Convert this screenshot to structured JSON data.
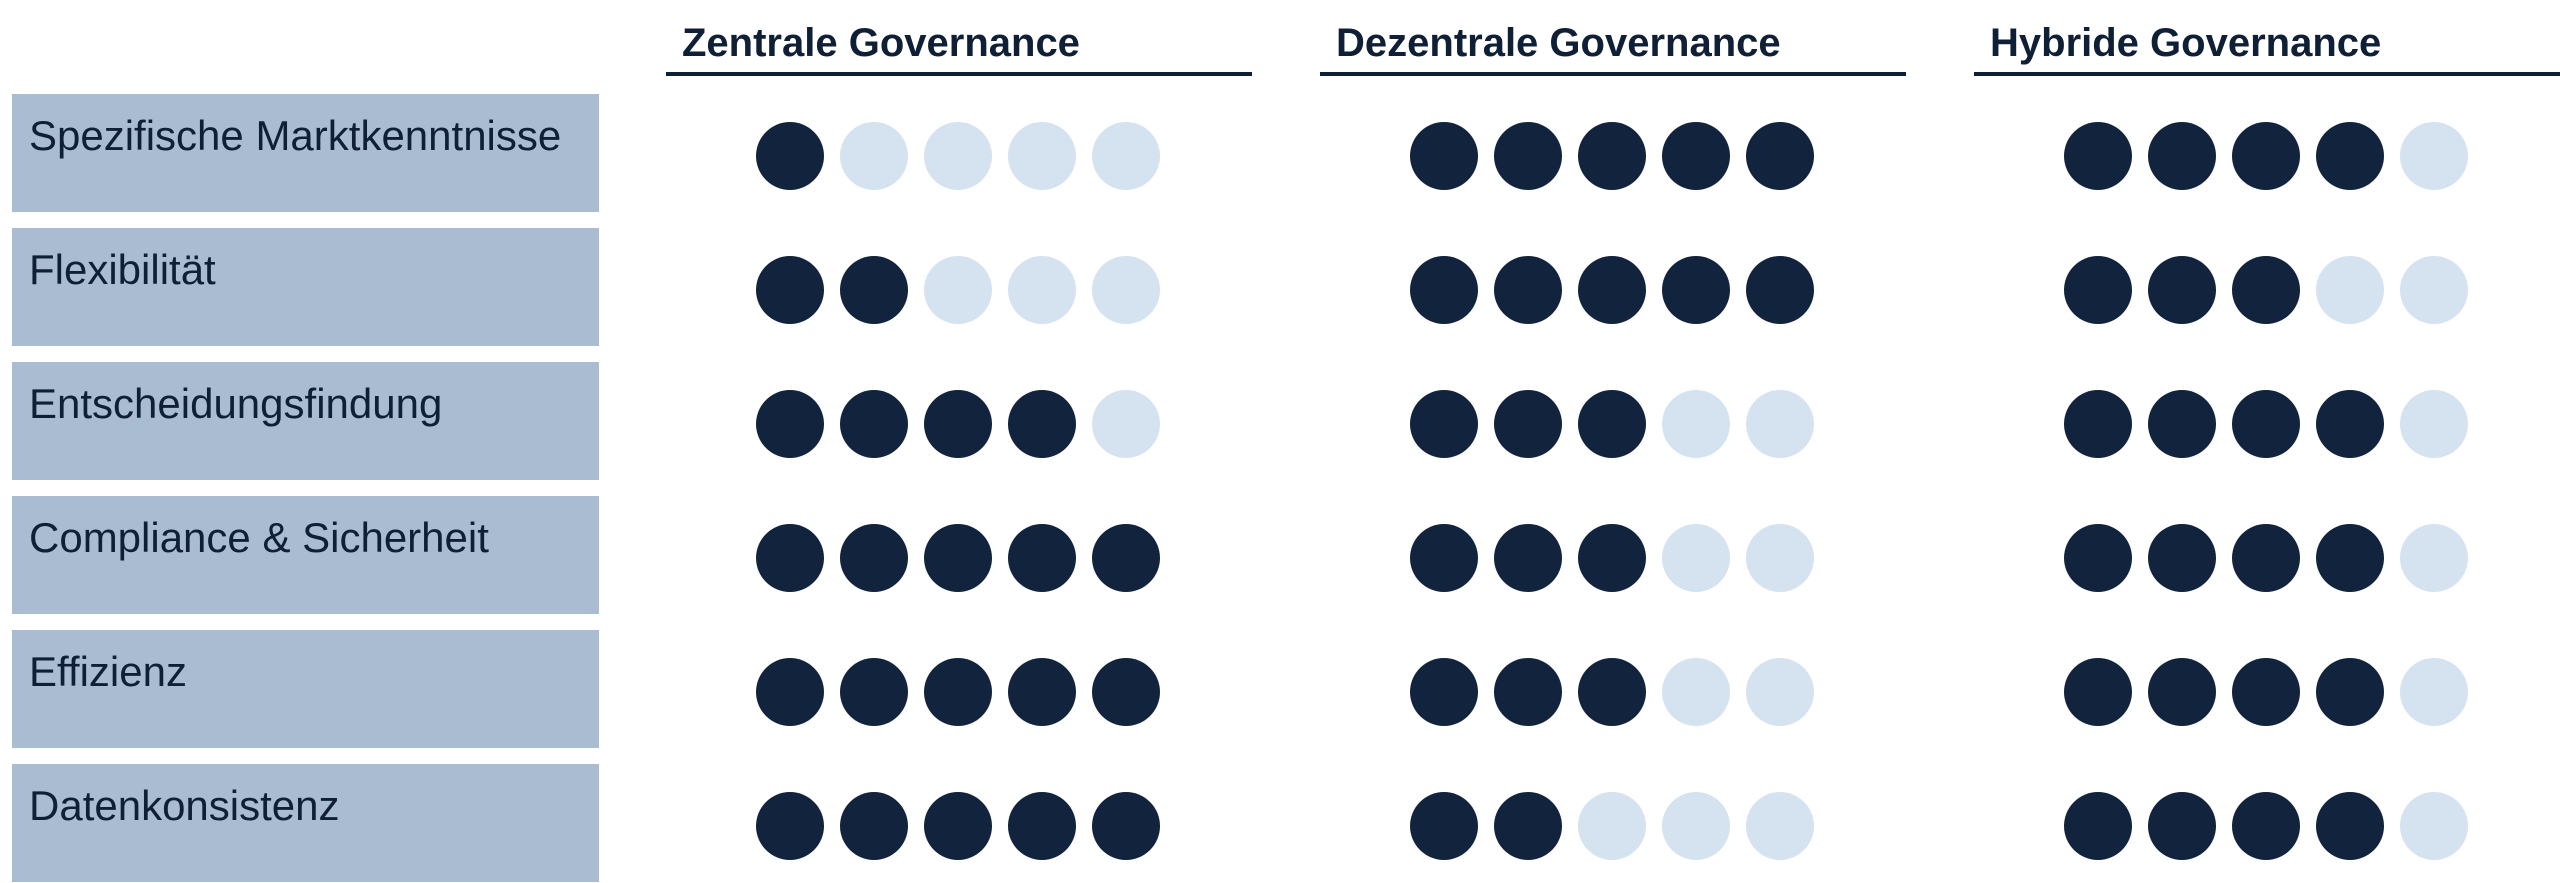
{
  "colors": {
    "filled": "#12233d",
    "empty": "#d5e2f0",
    "label_bg": "#a9bcd2",
    "text": "#0f1f35"
  },
  "max_score": 5,
  "columns": [
    {
      "label": "Zentrale Governance"
    },
    {
      "label": "Dezentrale Governance"
    },
    {
      "label": "Hybride Governance"
    }
  ],
  "rows": [
    {
      "label": "Spezifische Marktkenntnisse",
      "scores": [
        1,
        5,
        4
      ]
    },
    {
      "label": "Flexibilität",
      "scores": [
        2,
        5,
        3
      ]
    },
    {
      "label": "Entscheidungsfindung",
      "scores": [
        4,
        3,
        4
      ]
    },
    {
      "label": "Compliance & Sicherheit",
      "scores": [
        5,
        3,
        4
      ]
    },
    {
      "label": "Effizienz",
      "scores": [
        5,
        3,
        4
      ]
    },
    {
      "label": "Datenkonsistenz",
      "scores": [
        5,
        2,
        4
      ]
    }
  ]
}
